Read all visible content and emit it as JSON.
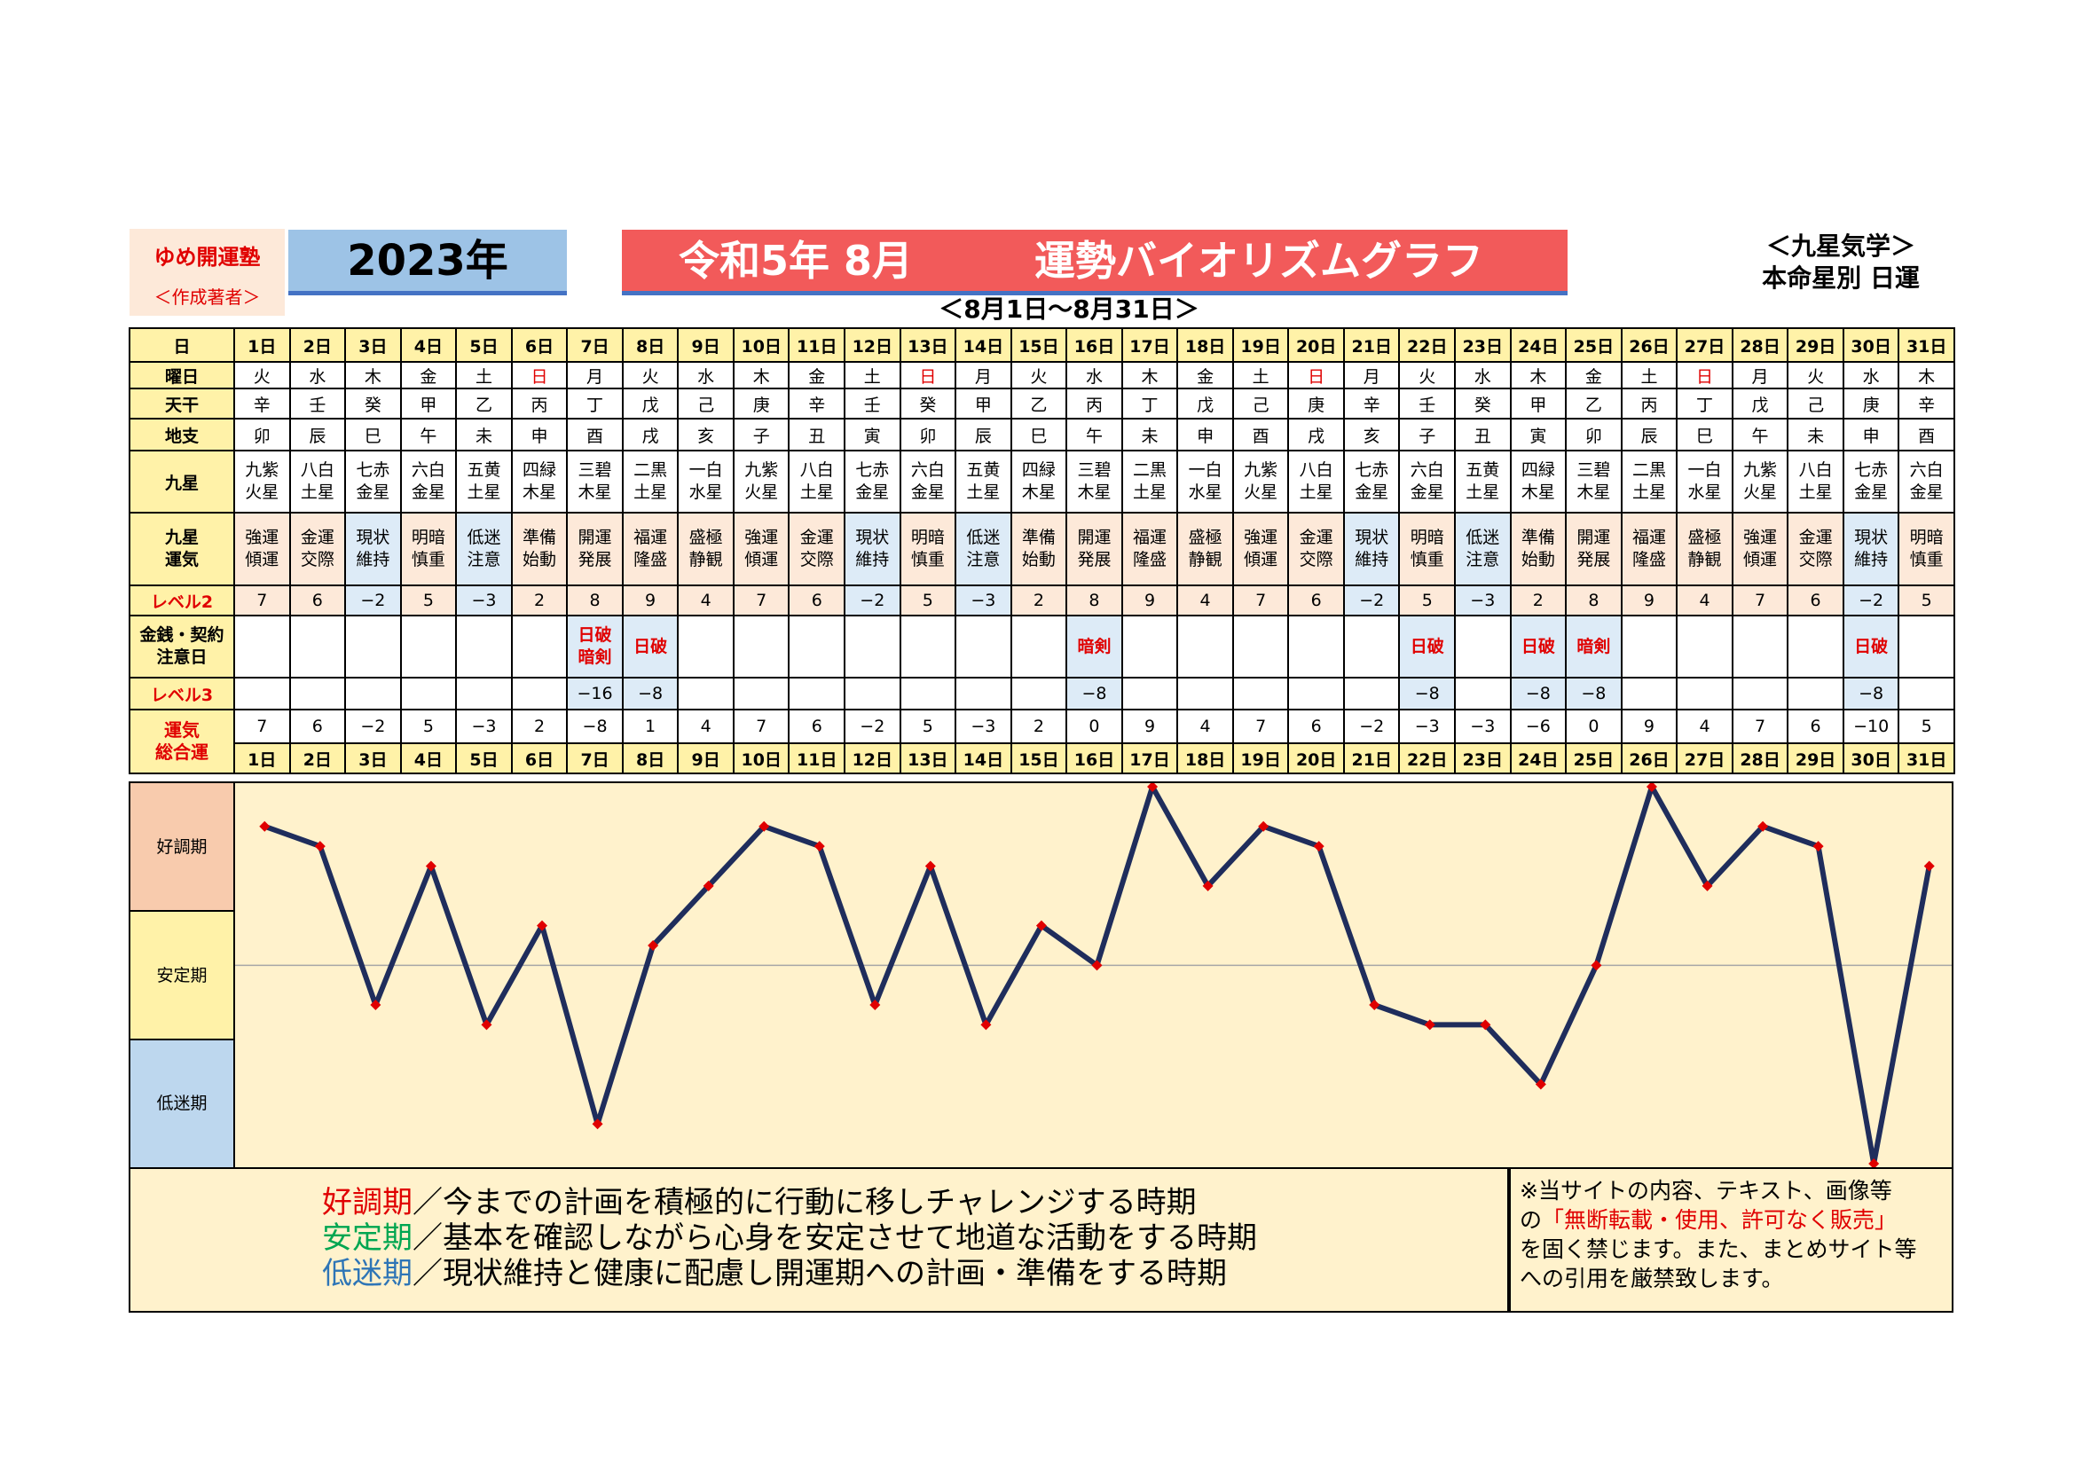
{
  "header": {
    "brand_line1": "ゆめ開運塾",
    "brand_line2": "＜作成著者＞",
    "year": "2023年",
    "title_left": "令和5年  8月",
    "title_right": "運勢バイオリズムグラフ",
    "school_line1": "＜九星気学＞",
    "school_line2": "本命星別   日運",
    "range": "＜8月1日～8月31日＞"
  },
  "row_labels": {
    "day": "日",
    "weekday": "曜日",
    "tenkan": "天干",
    "chishi": "地支",
    "kyusei": "九星",
    "kyusei_unki_1": "九星",
    "kyusei_unki_2": "運気",
    "level2": "レベル2",
    "caution_1": "金銭・契約",
    "caution_2": "注意日",
    "level3": "レベル3",
    "total_1": "運気",
    "total_2": "総合運"
  },
  "days": [
    "1日",
    "2日",
    "3日",
    "4日",
    "5日",
    "6日",
    "7日",
    "8日",
    "9日",
    "10日",
    "11日",
    "12日",
    "13日",
    "14日",
    "15日",
    "16日",
    "17日",
    "18日",
    "19日",
    "20日",
    "21日",
    "22日",
    "23日",
    "24日",
    "25日",
    "26日",
    "27日",
    "28日",
    "29日",
    "30日",
    "31日"
  ],
  "weekdays": [
    "火",
    "水",
    "木",
    "金",
    "土",
    "日",
    "月",
    "火",
    "水",
    "木",
    "金",
    "土",
    "日",
    "月",
    "火",
    "水",
    "木",
    "金",
    "土",
    "日",
    "月",
    "火",
    "水",
    "木",
    "金",
    "土",
    "日",
    "月",
    "火",
    "水",
    "木"
  ],
  "tenkan": [
    "辛",
    "壬",
    "癸",
    "甲",
    "乙",
    "丙",
    "丁",
    "戊",
    "己",
    "庚",
    "辛",
    "壬",
    "癸",
    "甲",
    "乙",
    "丙",
    "丁",
    "戊",
    "己",
    "庚",
    "辛",
    "壬",
    "癸",
    "甲",
    "乙",
    "丙",
    "丁",
    "戊",
    "己",
    "庚",
    "辛"
  ],
  "chishi": [
    "卯",
    "辰",
    "巳",
    "午",
    "未",
    "申",
    "酉",
    "戌",
    "亥",
    "子",
    "丑",
    "寅",
    "卯",
    "辰",
    "巳",
    "午",
    "未",
    "申",
    "酉",
    "戌",
    "亥",
    "子",
    "丑",
    "寅",
    "卯",
    "辰",
    "巳",
    "午",
    "未",
    "申",
    "酉"
  ],
  "kyusei_top": [
    "九紫",
    "八白",
    "七赤",
    "六白",
    "五黄",
    "四緑",
    "三碧",
    "二黒",
    "一白",
    "九紫",
    "八白",
    "七赤",
    "六白",
    "五黄",
    "四緑",
    "三碧",
    "二黒",
    "一白",
    "九紫",
    "八白",
    "七赤",
    "六白",
    "五黄",
    "四緑",
    "三碧",
    "二黒",
    "一白",
    "九紫",
    "八白",
    "七赤",
    "六白"
  ],
  "kyusei_bottom": [
    "火星",
    "土星",
    "金星",
    "金星",
    "土星",
    "木星",
    "木星",
    "土星",
    "水星",
    "火星",
    "土星",
    "金星",
    "金星",
    "土星",
    "木星",
    "木星",
    "土星",
    "水星",
    "火星",
    "土星",
    "金星",
    "金星",
    "土星",
    "木星",
    "木星",
    "土星",
    "水星",
    "火星",
    "土星",
    "金星",
    "金星"
  ],
  "unki_top": [
    "強運",
    "金運",
    "現状",
    "明暗",
    "低迷",
    "準備",
    "開運",
    "福運",
    "盛極",
    "強運",
    "金運",
    "現状",
    "明暗",
    "低迷",
    "準備",
    "開運",
    "福運",
    "盛極",
    "強運",
    "金運",
    "現状",
    "明暗",
    "低迷",
    "準備",
    "開運",
    "福運",
    "盛極",
    "強運",
    "金運",
    "現状",
    "明暗"
  ],
  "unki_bottom": [
    "傾運",
    "交際",
    "維持",
    "慎重",
    "注意",
    "始動",
    "発展",
    "隆盛",
    "静観",
    "傾運",
    "交際",
    "維持",
    "慎重",
    "注意",
    "始動",
    "発展",
    "隆盛",
    "静観",
    "傾運",
    "交際",
    "維持",
    "慎重",
    "注意",
    "始動",
    "発展",
    "隆盛",
    "静観",
    "傾運",
    "交際",
    "維持",
    "慎重"
  ],
  "level2": [
    "7",
    "6",
    "−2",
    "5",
    "−3",
    "2",
    "8",
    "9",
    "4",
    "7",
    "6",
    "−2",
    "5",
    "−3",
    "2",
    "8",
    "9",
    "4",
    "7",
    "6",
    "−2",
    "5",
    "−3",
    "2",
    "8",
    "9",
    "4",
    "7",
    "6",
    "−2",
    "5"
  ],
  "caution_top": [
    "",
    "",
    "",
    "",
    "",
    "",
    "日破",
    "日破",
    "",
    "",
    "",
    "",
    "",
    "",
    "",
    "暗剣",
    "",
    "",
    "",
    "",
    "",
    "日破",
    "",
    "日破",
    "暗剣",
    "",
    "",
    "",
    "",
    "日破",
    ""
  ],
  "caution_bottom": [
    "",
    "",
    "",
    "",
    "",
    "",
    "暗剣",
    "",
    "",
    "",
    "",
    "",
    "",
    "",
    "",
    "",
    "",
    "",
    "",
    "",
    "",
    "",
    "",
    "",
    "",
    "",
    "",
    "",
    "",
    "",
    ""
  ],
  "level3": [
    "",
    "",
    "",
    "",
    "",
    "",
    "−16",
    "−8",
    "",
    "",
    "",
    "",
    "",
    "",
    "",
    "−8",
    "",
    "",
    "",
    "",
    "",
    "−8",
    "",
    "−8",
    "−8",
    "",
    "",
    "",
    "",
    "−8",
    ""
  ],
  "total": [
    "7",
    "6",
    "−2",
    "5",
    "−3",
    "2",
    "−8",
    "1",
    "4",
    "7",
    "6",
    "−2",
    "5",
    "−3",
    "2",
    "0",
    "9",
    "4",
    "7",
    "6",
    "−2",
    "−3",
    "−3",
    "−6",
    "0",
    "9",
    "4",
    "7",
    "6",
    "−10",
    "5"
  ],
  "zones": {
    "good": "好調期",
    "stable": "安定期",
    "low": "低迷期"
  },
  "legend": {
    "good_term": "好調期",
    "good_desc": "／今までの計画を積極的に行動に移しチャレンジする時期",
    "stable_term": "安定期",
    "stable_desc": "／基本を確認しながら心身を安定させて地道な活動をする時期",
    "low_term": "低迷期",
    "low_desc": "／現状維持と健康に配慮し開運期への計画・準備をする時期"
  },
  "notice": {
    "line1": "※当サイトの内容、テキスト、画像等",
    "line2_a": "の",
    "line2_red": "「無断転載・使用、許可なく販売」",
    "line3": "を固く禁じます。また、まとめサイト等",
    "line4": "への引用を厳禁致します。"
  },
  "colors": {
    "line": "#1f2d5c",
    "marker": "#e00000",
    "good_zone": "#f8cbad",
    "stable_zone": "#fff2a8",
    "low_zone": "#bdd7ee",
    "plot_bg": "#fff2cc"
  },
  "chart_data": {
    "type": "line",
    "x": [
      1,
      2,
      3,
      4,
      5,
      6,
      7,
      8,
      9,
      10,
      11,
      12,
      13,
      14,
      15,
      16,
      17,
      18,
      19,
      20,
      21,
      22,
      23,
      24,
      25,
      26,
      27,
      28,
      29,
      30,
      31
    ],
    "series": [
      {
        "values": [
          7,
          6,
          -2,
          5,
          -3,
          2,
          -8,
          1,
          4,
          7,
          6,
          -2,
          5,
          -3,
          2,
          0,
          9,
          4,
          7,
          6,
          -2,
          -3,
          -3,
          -6,
          0,
          9,
          4,
          7,
          6,
          -10,
          5
        ]
      }
    ],
    "ylim": [
      -10,
      9
    ],
    "zones": [
      "好調期",
      "安定期",
      "低迷期"
    ],
    "grid": false
  }
}
